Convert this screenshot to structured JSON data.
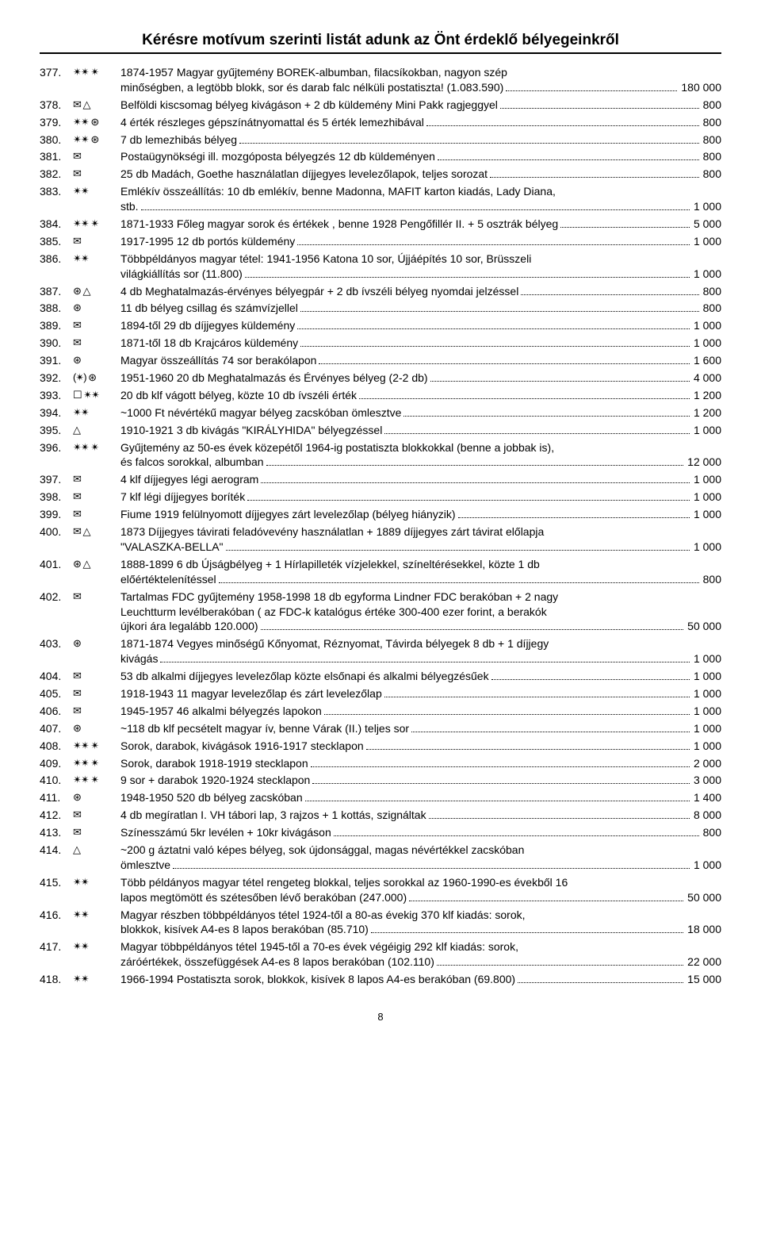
{
  "title": "Kérésre motívum szerinti listát adunk az Önt érdeklő bélyegeinkről",
  "page_number": "8",
  "rows": [
    {
      "num": "377.",
      "sym": "✴✴ ✴",
      "lines": [
        "1874-1957 Magyar gyűjtemény BOREK-albumban, filacsíkokban, nagyon szép",
        "minőségben, a legtöbb blokk, sor és darab falc nélküli postatiszta! (1.083.590)"
      ],
      "price": "180 000"
    },
    {
      "num": "378.",
      "sym": "✉ △",
      "lines": [
        "Belföldi kiscsomag bélyeg kivágáson + 2 db küldemény Mini Pakk ragjeggyel"
      ],
      "price": "800"
    },
    {
      "num": "379.",
      "sym": "✴✴ ⊛",
      "lines": [
        "4 érték részleges gépszínátnyomattal és 5 érték lemezhibával"
      ],
      "price": "800"
    },
    {
      "num": "380.",
      "sym": "✴✴ ⊛",
      "lines": [
        "7 db lemezhibás bélyeg"
      ],
      "price": "800"
    },
    {
      "num": "381.",
      "sym": "✉",
      "lines": [
        "Postaügynökségi ill. mozgóposta bélyegzés 12 db küldeményen"
      ],
      "price": "800"
    },
    {
      "num": "382.",
      "sym": "✉",
      "lines": [
        "25 db Madách, Goethe használatlan díjjegyes levelezőlapok, teljes sorozat"
      ],
      "price": "800"
    },
    {
      "num": "383.",
      "sym": "✴✴",
      "lines": [
        "Emlékív összeállítás: 10 db emlékív, benne Madonna, MAFIT karton kiadás, Lady Diana,",
        "stb."
      ],
      "price": "1 000"
    },
    {
      "num": "384.",
      "sym": "✴✴ ✴",
      "lines": [
        "1871-1933 Főleg magyar sorok és értékek , benne 1928 Pengőfillér II. + 5 osztrák bélyeg"
      ],
      "price": "5 000"
    },
    {
      "num": "385.",
      "sym": "✉",
      "lines": [
        "1917-1995 12 db portós küldemény"
      ],
      "price": "1 000"
    },
    {
      "num": "386.",
      "sym": "✴✴",
      "lines": [
        "Többpéldányos magyar tétel: 1941-1956 Katona 10 sor, Újjáépítés 10 sor, Brüsszeli",
        "világkiállítás sor (11.800)"
      ],
      "price": "1 000"
    },
    {
      "num": "387.",
      "sym": "⊛ △",
      "lines": [
        "4 db Meghatalmazás-érvényes bélyegpár + 2 db ívszéli bélyeg nyomdai jelzéssel"
      ],
      "price": "800"
    },
    {
      "num": "388.",
      "sym": "⊛",
      "lines": [
        "11 db bélyeg csillag és számvízjellel"
      ],
      "price": "800"
    },
    {
      "num": "389.",
      "sym": "✉",
      "lines": [
        "1894-től 29 db díjjegyes küldemény"
      ],
      "price": "1 000"
    },
    {
      "num": "390.",
      "sym": "✉",
      "lines": [
        "1871-től 18 db Krajcáros küldemény"
      ],
      "price": "1 000"
    },
    {
      "num": "391.",
      "sym": "⊛",
      "lines": [
        "Magyar összeállítás 74 sor berakólapon"
      ],
      "price": "1 600"
    },
    {
      "num": "392.",
      "sym": "(✴) ⊛",
      "lines": [
        "1951-1960 20 db Meghatalmazás és Érvényes bélyeg (2-2 db)"
      ],
      "price": "4 000"
    },
    {
      "num": "393.",
      "sym": "☐ ✴✴",
      "lines": [
        "20 db klf vágott bélyeg, közte 10 db ívszéli érték"
      ],
      "price": "1 200"
    },
    {
      "num": "394.",
      "sym": "✴✴",
      "lines": [
        "~1000 Ft névértékű magyar bélyeg zacskóban ömlesztve"
      ],
      "price": "1 200"
    },
    {
      "num": "395.",
      "sym": "△",
      "lines": [
        "1910-1921 3 db kivágás \"KIRÁLYHIDA\" bélyegzéssel"
      ],
      "price": "1 000"
    },
    {
      "num": "396.",
      "sym": "✴✴ ✴",
      "lines": [
        "Gyűjtemény az 50-es évek közepétől 1964-ig postatiszta blokkokkal (benne a jobbak is),",
        "és falcos sorokkal, albumban"
      ],
      "price": "12 000"
    },
    {
      "num": "397.",
      "sym": "✉",
      "lines": [
        "4 klf díjjegyes légi aerogram"
      ],
      "price": "1 000"
    },
    {
      "num": "398.",
      "sym": "✉",
      "lines": [
        "7 klf légi díjjegyes boríték"
      ],
      "price": "1 000"
    },
    {
      "num": "399.",
      "sym": "✉",
      "lines": [
        "Fiume 1919 felülnyomott díjjegyes zárt levelezőlap (bélyeg hiányzik)"
      ],
      "price": "1 000"
    },
    {
      "num": "400.",
      "sym": "✉ △",
      "lines": [
        "1873 Díjjegyes távirati feladóvevény használatlan + 1889 díjjegyes zárt távirat előlapja",
        "\"VALASZKA-BELLA\""
      ],
      "price": "1 000"
    },
    {
      "num": "401.",
      "sym": "⊛ △",
      "lines": [
        "1888-1899 6 db Újságbélyeg + 1 Hírlapilleték vízjelekkel, színeltérésekkel, közte 1 db",
        "előértéktelenítéssel"
      ],
      "price": "800"
    },
    {
      "num": "402.",
      "sym": "✉",
      "lines": [
        "Tartalmas FDC gyűjtemény 1958-1998 18 db egyforma Lindner FDC berakóban + 2 nagy",
        "Leuchtturm levélberakóban ( az FDC-k katalógus értéke 300-400 ezer forint, a berakók",
        "újkori ára legalább 120.000)"
      ],
      "price": "50 000"
    },
    {
      "num": "403.",
      "sym": "⊛",
      "lines": [
        "1871-1874 Vegyes minőségű Kőnyomat, Réznyomat, Távirda bélyegek 8 db + 1 díjjegy",
        "kivágás"
      ],
      "price": "1 000"
    },
    {
      "num": "404.",
      "sym": "✉",
      "lines": [
        "53 db alkalmi díjjegyes levelezőlap közte elsőnapi és alkalmi bélyegzésűek"
      ],
      "price": "1 000"
    },
    {
      "num": "405.",
      "sym": "✉",
      "lines": [
        "1918-1943 11 magyar levelezőlap és zárt levelezőlap"
      ],
      "price": "1 000"
    },
    {
      "num": "406.",
      "sym": "✉",
      "lines": [
        "1945-1957 46 alkalmi bélyegzés lapokon"
      ],
      "price": "1 000"
    },
    {
      "num": "407.",
      "sym": "⊛",
      "lines": [
        "~118 db klf pecsételt magyar ív, benne Várak (II.) teljes sor"
      ],
      "price": "1 000"
    },
    {
      "num": "408.",
      "sym": "✴✴ ✴",
      "lines": [
        "Sorok, darabok, kivágások 1916-1917 stecklapon"
      ],
      "price": "1 000"
    },
    {
      "num": "409.",
      "sym": "✴✴ ✴",
      "lines": [
        "Sorok, darabok 1918-1919 stecklapon"
      ],
      "price": "2 000"
    },
    {
      "num": "410.",
      "sym": "✴✴ ✴",
      "lines": [
        "9 sor + darabok 1920-1924 stecklapon"
      ],
      "price": "3 000"
    },
    {
      "num": "411.",
      "sym": "⊛",
      "lines": [
        "1948-1950 520 db bélyeg zacskóban"
      ],
      "price": "1 400"
    },
    {
      "num": "412.",
      "sym": "✉",
      "lines": [
        "4 db megíratlan I. VH tábori lap, 3 rajzos + 1 kottás, szignáltak"
      ],
      "price": "8 000"
    },
    {
      "num": "413.",
      "sym": "✉",
      "lines": [
        "Színesszámú 5kr levélen + 10kr kivágáson"
      ],
      "price": "800"
    },
    {
      "num": "414.",
      "sym": "△",
      "lines": [
        "~200 g áztatni való képes bélyeg, sok újdonsággal, magas névértékkel zacskóban",
        "ömlesztve"
      ],
      "price": "1 000"
    },
    {
      "num": "415.",
      "sym": "✴✴",
      "lines": [
        "Több példányos magyar tétel rengeteg blokkal, teljes sorokkal az 1960-1990-es évekből 16",
        "lapos megtömött és szétesőben lévő berakóban (247.000)"
      ],
      "price": "50 000"
    },
    {
      "num": "416.",
      "sym": "✴✴",
      "lines": [
        "Magyar részben többpéldányos tétel 1924-től a 80-as évekig 370 klf kiadás: sorok,",
        "blokkok, kisívek A4-es 8 lapos berakóban (85.710)"
      ],
      "price": "18 000"
    },
    {
      "num": "417.",
      "sym": "✴✴",
      "lines": [
        "Magyar többpéldányos tétel 1945-től a 70-es évek végéigig 292 klf kiadás: sorok,",
        "záróértékek, összefüggések A4-es 8 lapos berakóban (102.110)"
      ],
      "price": "22 000"
    },
    {
      "num": "418.",
      "sym": "✴✴",
      "lines": [
        "1966-1994 Postatiszta sorok, blokkok, kisívek 8 lapos A4-es berakóban (69.800)"
      ],
      "price": "15 000"
    }
  ]
}
